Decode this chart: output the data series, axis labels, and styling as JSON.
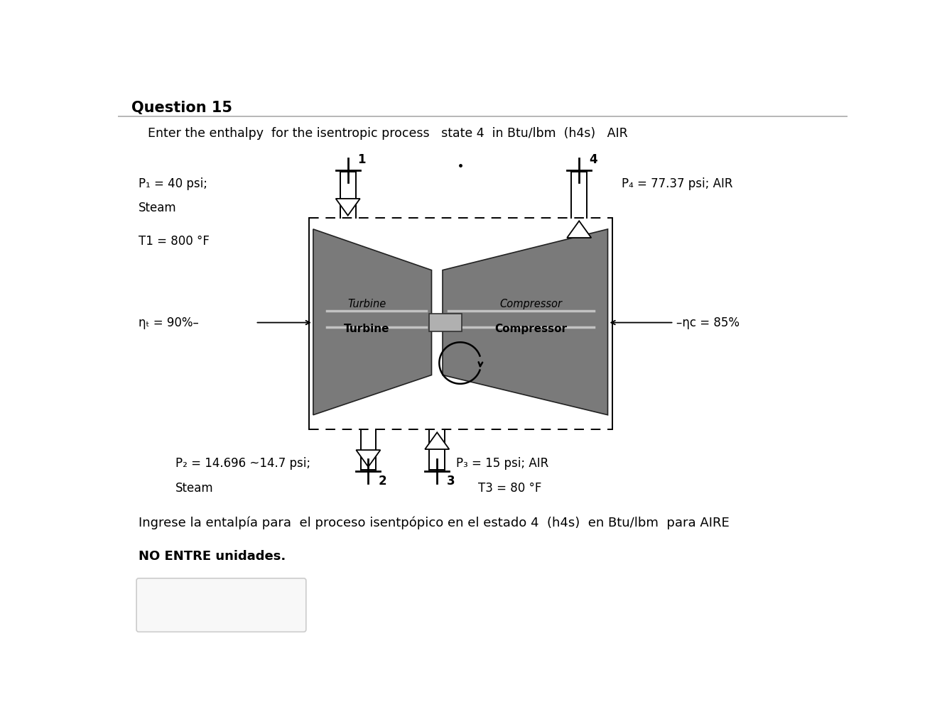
{
  "title": "Question 15",
  "question_text": "Enter the enthalpy  for the isentropic process   state 4  in Btu/lbm  (h4s)   AIR",
  "spanish_text": "Ingrese la entalpía para  el proceso isentрópico en el estado 4  (h4s)  en Btu/lbm  para AIRE",
  "no_units_text": "NO ENTRE unidades.",
  "bg_color": "#ffffff",
  "P1_line1": "P₁ = 40 psi;",
  "P1_line2": "Steam",
  "T1": "T1 = 800 °F",
  "eta_t": "ηₜ = 90%–",
  "P4": "P₄ = 77.37 psi; AIR",
  "eta_c": "–ηc = 85%",
  "P2_line1": "P₂ = 14.696 ~14.7 psi;",
  "P2_line2": "Steam",
  "P3": "P₃ = 15 psi; AIR",
  "T3": "T3 = 80 °F"
}
